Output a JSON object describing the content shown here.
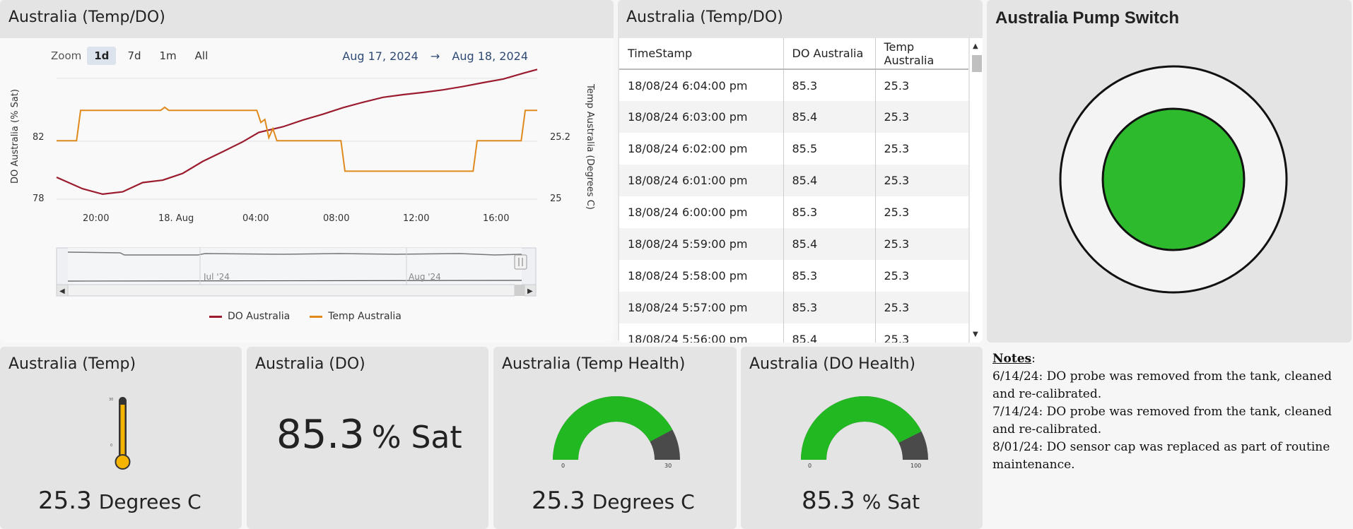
{
  "chart_panel": {
    "title": "Australia (Temp/DO)",
    "zoom_label": "Zoom",
    "zoom_buttons": [
      "1d",
      "7d",
      "1m",
      "All"
    ],
    "zoom_active": "1d",
    "date_from": "Aug 17, 2024",
    "date_arrow": "→",
    "date_to": "Aug 18, 2024",
    "navigator_labels": [
      "Jul '24",
      "Aug '24"
    ],
    "chart_data": {
      "type": "line",
      "xlabel": "",
      "x_ticks": [
        "20:00",
        "18. Aug",
        "04:00",
        "08:00",
        "12:00",
        "16:00"
      ],
      "x_hours": [
        18.2,
        42.2
      ],
      "y_left": {
        "label": "DO Australia (% Sat)",
        "ticks": [
          78,
          82
        ],
        "range": [
          77.7,
          86.7
        ]
      },
      "y_right": {
        "label": "Temp Australia (Degrees C)",
        "ticks": [
          25,
          25.2
        ],
        "range": [
          24.98,
          25.48
        ]
      },
      "legend_position": "bottom",
      "grid": true,
      "series": [
        {
          "name": "DO Australia",
          "color": "#9b1c2e",
          "axis": "left",
          "points": [
            [
              18.2,
              79.6
            ],
            [
              18.8,
              79.3
            ],
            [
              19.5,
              78.9
            ],
            [
              20.5,
              78.5
            ],
            [
              21.5,
              78.6
            ],
            [
              22.5,
              79.2
            ],
            [
              23.5,
              79.4
            ],
            [
              24.5,
              79.9
            ],
            [
              25.5,
              80.7
            ],
            [
              26.5,
              81.3
            ],
            [
              27.5,
              81.9
            ],
            [
              28.3,
              82.5
            ],
            [
              29.5,
              82.9
            ],
            [
              30.5,
              83.4
            ],
            [
              31.5,
              83.8
            ],
            [
              32.5,
              84.2
            ],
            [
              33.5,
              84.5
            ],
            [
              34.5,
              84.8
            ],
            [
              35.5,
              85.0
            ],
            [
              36.5,
              85.2
            ],
            [
              37.5,
              85.4
            ],
            [
              38.5,
              85.6
            ],
            [
              39.5,
              85.8
            ],
            [
              40.5,
              86.0
            ],
            [
              41.5,
              86.4
            ],
            [
              42.2,
              86.7
            ]
          ]
        },
        {
          "name": "Temp Australia",
          "color": "#e08a1e",
          "axis": "left",
          "points": [
            [
              18.2,
              82.0
            ],
            [
              19.2,
              82.0
            ],
            [
              19.4,
              84.0
            ],
            [
              23.4,
              84.0
            ],
            [
              23.6,
              84.2
            ],
            [
              23.8,
              84.0
            ],
            [
              28.2,
              84.0
            ],
            [
              28.4,
              83.2
            ],
            [
              28.6,
              83.4
            ],
            [
              28.8,
              82.2
            ],
            [
              29.0,
              82.8
            ],
            [
              29.2,
              82.0
            ],
            [
              32.4,
              82.0
            ],
            [
              32.6,
              80.0
            ],
            [
              39.0,
              80.0
            ],
            [
              39.2,
              82.0
            ],
            [
              41.4,
              82.0
            ],
            [
              41.6,
              84.0
            ],
            [
              42.2,
              84.0
            ]
          ]
        }
      ]
    }
  },
  "table_panel": {
    "title": "Australia (Temp/DO)",
    "columns": [
      "TimeStamp",
      "DO Australia",
      "Temp Australia"
    ],
    "rows": [
      [
        "18/08/24 6:04:00 pm",
        "85.3",
        "25.3"
      ],
      [
        "18/08/24 6:03:00 pm",
        "85.4",
        "25.3"
      ],
      [
        "18/08/24 6:02:00 pm",
        "85.5",
        "25.3"
      ],
      [
        "18/08/24 6:01:00 pm",
        "85.4",
        "25.3"
      ],
      [
        "18/08/24 6:00:00 pm",
        "85.3",
        "25.3"
      ],
      [
        "18/08/24 5:59:00 pm",
        "85.4",
        "25.3"
      ],
      [
        "18/08/24 5:58:00 pm",
        "85.3",
        "25.3"
      ],
      [
        "18/08/24 5:57:00 pm",
        "85.3",
        "25.3"
      ],
      [
        "18/08/24 5:56:00 pm",
        "85.4",
        "25.3"
      ]
    ]
  },
  "pump_panel": {
    "title": "Australia Pump Switch",
    "status_color": "#2dba2d"
  },
  "temp_panel": {
    "title": "Australia (Temp)",
    "value": "25.3",
    "unit": "Degrees C",
    "thermo_fill": 0.95,
    "thermo_top_label": "30",
    "thermo_mid_label": "0"
  },
  "do_panel": {
    "title": "Australia (DO)",
    "value": "85.3",
    "unit": "% Sat"
  },
  "temp_health": {
    "title": "Australia (Temp Health)",
    "value": "25.3",
    "unit": "Degrees C",
    "min": "0",
    "max": "30",
    "fraction": 0.843,
    "gauge_color": "#22b822"
  },
  "do_health": {
    "title": "Australia (DO Health)",
    "value": "85.3",
    "unit": "% Sat",
    "min": "0",
    "max": "100",
    "fraction": 0.853,
    "gauge_color": "#22b822"
  },
  "notes": {
    "heading": "Notes",
    "lines": [
      "6/14/24: DO probe was removed from the tank, cleaned and re-calibrated.",
      "7/14/24: DO probe was removed from the tank, cleaned and re-calibrated.",
      "8/01/24: DO sensor cap was replaced as part of routine maintenance."
    ]
  }
}
